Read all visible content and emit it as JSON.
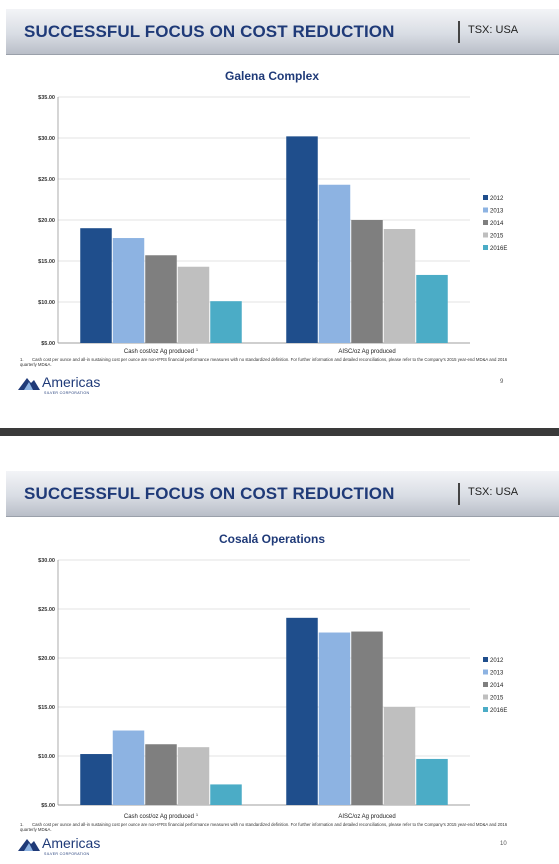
{
  "slides": [
    {
      "header": {
        "title": "SUCCESSFUL FOCUS ON COST REDUCTION",
        "ticker": "TSX: USA"
      },
      "footnote": {
        "number": "1.",
        "text": "Cash cost per ounce and all-in sustaining cost per ounce are non-IFRS financial performance measures with no standardized definition.  For further information and detailed reconciliations, please refer to the Company's 2015 year-end MD&A and 2016 quarterly MD&A."
      },
      "logo": {
        "name": "Americas",
        "sub": "SILVER CORPORATION"
      },
      "page_number": "9"
    },
    {
      "header": {
        "title": "SUCCESSFUL FOCUS ON COST REDUCTION",
        "ticker": "TSX: USA"
      },
      "footnote": {
        "number": "1.",
        "text": "Cash cost per ounce and all-in sustaining cost per ounce are non-IFRS financial performance measures with no standardized definition.  For further information and detailed reconciliations, please refer to the Company's 2015 year-end MD&A and 2016 quarterly MD&A."
      },
      "logo": {
        "name": "Americas",
        "sub": "SILVER CORPORATION"
      },
      "page_number": "10"
    }
  ],
  "chart_data": [
    {
      "type": "bar",
      "title": "Galena Complex",
      "categories": [
        "Cash cost/oz Ag produced",
        "AISC/oz Ag produced"
      ],
      "category_superscripts": [
        "1",
        ""
      ],
      "series": [
        {
          "name": "2012",
          "color": "#1f4e8c",
          "values": [
            19.0,
            30.2
          ]
        },
        {
          "name": "2013",
          "color": "#8db3e2",
          "values": [
            17.8,
            24.3
          ]
        },
        {
          "name": "2014",
          "color": "#7f7f7f",
          "values": [
            15.7,
            20.0
          ]
        },
        {
          "name": "2015",
          "color": "#bfbfbf",
          "values": [
            14.3,
            18.9
          ]
        },
        {
          "name": "2016E",
          "color": "#4bacc6",
          "values": [
            10.1,
            13.3
          ]
        }
      ],
      "ylim": [
        5,
        35
      ],
      "yticks": [
        "$5.00",
        "$10.00",
        "$15.00",
        "$20.00",
        "$25.00",
        "$30.00",
        "$35.00"
      ],
      "grid": true,
      "legend": "right"
    },
    {
      "type": "bar",
      "title": "Cosalá Operations",
      "categories": [
        "Cash cost/oz Ag produced",
        "AISC/oz Ag produced"
      ],
      "category_superscripts": [
        "1",
        ""
      ],
      "series": [
        {
          "name": "2012",
          "color": "#1f4e8c",
          "values": [
            10.2,
            24.1
          ]
        },
        {
          "name": "2013",
          "color": "#8db3e2",
          "values": [
            12.6,
            22.6
          ]
        },
        {
          "name": "2014",
          "color": "#7f7f7f",
          "values": [
            11.2,
            22.7
          ]
        },
        {
          "name": "2015",
          "color": "#bfbfbf",
          "values": [
            10.9,
            15.0
          ]
        },
        {
          "name": "2016E",
          "color": "#4bacc6",
          "values": [
            7.1,
            9.7
          ]
        }
      ],
      "ylim": [
        5,
        30
      ],
      "yticks": [
        "$5.00",
        "$10.00",
        "$15.00",
        "$20.00",
        "$25.00",
        "$30.00"
      ],
      "grid": true,
      "legend": "right"
    }
  ]
}
